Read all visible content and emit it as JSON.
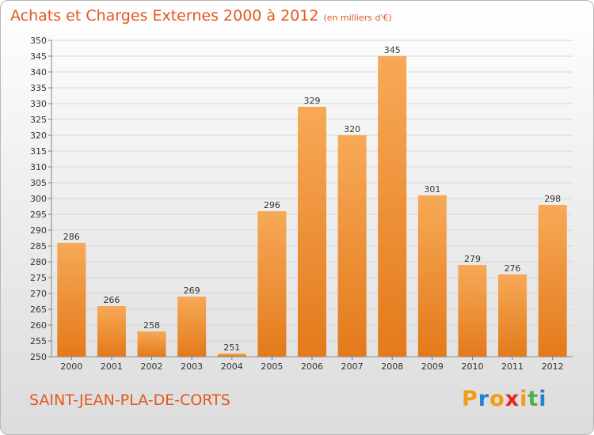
{
  "header": {
    "title": "Achats et Charges Externes 2000 à 2012",
    "units": "(en milliers d'€)"
  },
  "footer": {
    "city": "SAINT-JEAN-PLA-DE-CORTS",
    "logo": {
      "letters": [
        "P",
        "r",
        "o",
        "x",
        "i",
        "t",
        "i"
      ],
      "colors": [
        "#f39c12",
        "#2a7fd4",
        "#f39c12",
        "#e8261c",
        "#f39c12",
        "#4caf50",
        "#2a7fd4"
      ]
    }
  },
  "colors": {
    "bar_top": "#f7a957",
    "bar_bottom": "#e37a1b",
    "accent": "#e2571f"
  },
  "chart_data": {
    "type": "bar",
    "title": "Achats et Charges Externes 2000 à 2012",
    "subtitle": "(en milliers d'€)",
    "categories": [
      "2000",
      "2001",
      "2002",
      "2003",
      "2004",
      "2005",
      "2006",
      "2007",
      "2008",
      "2009",
      "2010",
      "2011",
      "2012"
    ],
    "values": [
      286,
      266,
      258,
      269,
      251,
      296,
      329,
      320,
      345,
      301,
      279,
      276,
      298
    ],
    "ylim": [
      250,
      350
    ],
    "yticks": [
      250,
      255,
      260,
      265,
      270,
      275,
      280,
      285,
      290,
      295,
      300,
      305,
      310,
      315,
      320,
      325,
      330,
      335,
      340,
      345,
      350
    ],
    "grid": true,
    "data_labels": true
  }
}
